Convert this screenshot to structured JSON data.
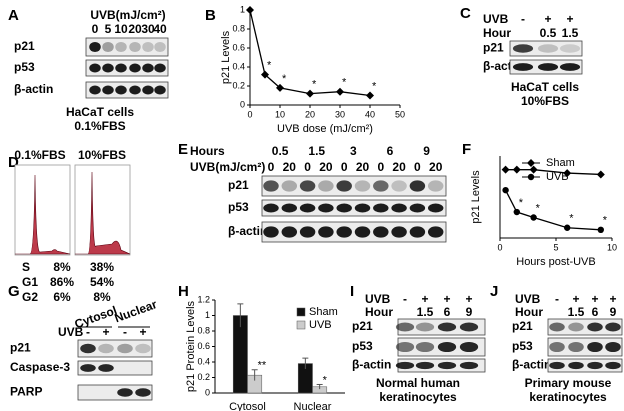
{
  "panels": {
    "letters": [
      "A",
      "B",
      "C",
      "D",
      "E",
      "F",
      "G",
      "H",
      "I",
      "J"
    ]
  },
  "blot_a": {
    "header": "UVB(mJ/cm²)",
    "lanes": [
      "0",
      "5",
      "10",
      "20",
      "30",
      "40"
    ],
    "rows": [
      "p21",
      "p53",
      "β-actin"
    ],
    "caption": [
      "HaCaT cells",
      "0.1%FBS"
    ]
  },
  "blot_c": {
    "uvb_label": "UVB",
    "hour_label": "Hour",
    "uvb": [
      "-",
      "+",
      "+"
    ],
    "hour": [
      null,
      "0.5",
      "1.5"
    ],
    "rows": [
      "p21",
      "β-actin"
    ],
    "caption": [
      "HaCaT cells",
      "10%FBS"
    ]
  },
  "panel_d": {
    "headers": [
      "0.1%FBS",
      "10%FBS"
    ],
    "rows": [
      [
        "S",
        "8%",
        "38%"
      ],
      [
        "G1",
        "86%",
        "54%"
      ],
      [
        "G2",
        "6%",
        "8%"
      ]
    ]
  },
  "blot_e": {
    "hours_label": "Hours",
    "hours": [
      "0.5",
      "1.5",
      "3",
      "6",
      "9"
    ],
    "uvb_label": "UVB(mJ/cm²)",
    "uvb": [
      "0",
      "20",
      "0",
      "20",
      "0",
      "20",
      "0",
      "20",
      "0",
      "20"
    ],
    "rows": [
      "p21",
      "p53",
      "β-actin"
    ]
  },
  "blot_g": {
    "headers": [
      "Cytosol",
      "Nuclear"
    ],
    "uvb_label": "UVB",
    "uvb": [
      "-",
      "+",
      "-",
      "+"
    ],
    "rows": [
      "p21",
      "Caspase-3",
      "PARP"
    ]
  },
  "blot_i": {
    "uvb_label": "UVB",
    "hour_label": "Hour",
    "uvb": [
      "-",
      "+",
      "+",
      "+"
    ],
    "hour": [
      null,
      "1.5",
      "6",
      "9"
    ],
    "rows": [
      "p21",
      "p53",
      "β-actin"
    ],
    "caption": [
      "Normal human",
      "keratinocytes"
    ]
  },
  "blot_j": {
    "uvb_label": "UVB",
    "hour_label": "Hour",
    "uvb": [
      "-",
      "+",
      "+",
      "+"
    ],
    "hour": [
      null,
      "1.5",
      "6",
      "9"
    ],
    "rows": [
      "p21",
      "p53",
      "β-actin"
    ],
    "caption": [
      "Primary mouse",
      "keratinocytes"
    ]
  },
  "chart_data": [
    {
      "type": "line",
      "x_label": "UVB dose (mJ/cm²)",
      "y_label": "p21 Levels",
      "x": [
        0,
        5,
        10,
        20,
        30,
        40
      ],
      "xlim": [
        0,
        50
      ],
      "xticks": [
        0,
        10,
        20,
        30,
        40,
        50
      ],
      "ylim": [
        0,
        1
      ],
      "yticks": [
        0,
        0.2,
        0.4,
        0.6,
        0.8,
        1
      ],
      "series": [
        {
          "color": "#000000",
          "marker": "diamond",
          "values": [
            1.0,
            0.32,
            0.18,
            0.12,
            0.14,
            0.1
          ],
          "point_labels": [
            null,
            "*",
            "*",
            "*",
            "*",
            "*"
          ]
        }
      ]
    },
    {
      "type": "line",
      "x_label": "Hours post-UVB",
      "y_label": "p21 Levels",
      "x": [
        0.5,
        1.5,
        3,
        6,
        9
      ],
      "xlim": [
        0,
        10
      ],
      "xticks": [
        0,
        5,
        10
      ],
      "ylim": [
        0,
        1.2
      ],
      "legend": "upper right",
      "series": [
        {
          "name": "Sham",
          "color": "#000000",
          "marker": "diamond",
          "values": [
            1.0,
            1.0,
            1.0,
            0.95,
            0.93
          ]
        },
        {
          "name": "UVB",
          "color": "#000000",
          "marker": "circle",
          "values": [
            0.7,
            0.38,
            0.3,
            0.15,
            0.12
          ],
          "point_labels": [
            null,
            "*",
            "*",
            "*",
            "*"
          ]
        }
      ]
    },
    {
      "type": "bar",
      "y_label": "p21 Protein Levels",
      "categories": [
        "Cytosol",
        "Nuclear"
      ],
      "ylim": [
        0,
        1.2
      ],
      "yticks": [
        0,
        0.2,
        0.4,
        0.6,
        0.8,
        1,
        1.2
      ],
      "legend": "upper right",
      "series": [
        {
          "name": "Sham",
          "color": "#111111",
          "values": [
            1.0,
            0.38
          ],
          "errors": [
            0.15,
            0.07
          ]
        },
        {
          "name": "UVB",
          "color": "#cccccc",
          "values": [
            0.23,
            0.08
          ],
          "errors": [
            0.07,
            0.03
          ],
          "point_labels": [
            "**",
            "*"
          ]
        }
      ]
    }
  ]
}
